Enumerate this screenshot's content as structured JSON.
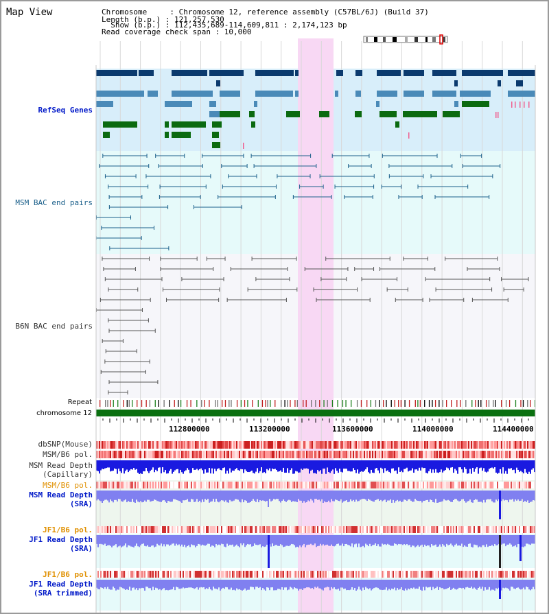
{
  "panel_title": "Map View",
  "info": {
    "chromosome_line": "Chromosome     : Chromosome 12, reference assembly (C57BL/6J) (Build 37)",
    "length_line": "Length (b.p.) : 121,257,530",
    "show_line": "  Show (b.p.) : 112,435,689-114,609,811 : 2,174,123 bp",
    "span_line": "Read coverage check span : 10,000"
  },
  "tracks": {
    "refseq": "RefSeq Genes",
    "msm_bac": "MSM BAC end pairs",
    "b6n_bac": "B6N BAC end pairs",
    "repeat": "Repeat",
    "chromosome": "chromosome 12",
    "dbsnp": "dbSNP(Mouse)",
    "msm_b6_pol_1": "MSM/B6 pol.",
    "msm_depth_cap_1": "MSM Read Depth",
    "msm_depth_cap_2": "(Capillary)",
    "msm_b6_pol_2": "MSM/B6 pol.",
    "msm_depth_sra_1": "MSM Read Depth",
    "msm_depth_sra_2": "(SRA)",
    "jf1_b6_pol_1": "JF1/B6 pol.",
    "jf1_depth_sra_1": "JF1 Read Depth",
    "jf1_depth_sra_2": "(SRA)",
    "jf1_b6_pol_2": "JF1/B6 pol.",
    "jf1_depth_trim_1": "JF1 Read Depth",
    "jf1_depth_trim_2": "(SRA trimmed)"
  },
  "axis_ticks": [
    "112800000",
    "113200000",
    "113600000",
    "114000000",
    "114400000"
  ],
  "colors": {
    "highlight": "#f8d8f4",
    "refseq_bg": "#d8eefa",
    "bac_bg": "#e6fafa",
    "gene_dark": "#0b3a6e",
    "gene_mid": "#4a8ab8",
    "gene_green": "#0b6a10",
    "chromosome": "#0a7010",
    "depth_blue": "#1a1ae0",
    "depth_light": "#8080f0",
    "label_blue": "#0018c8",
    "label_orange": "#e09000"
  }
}
